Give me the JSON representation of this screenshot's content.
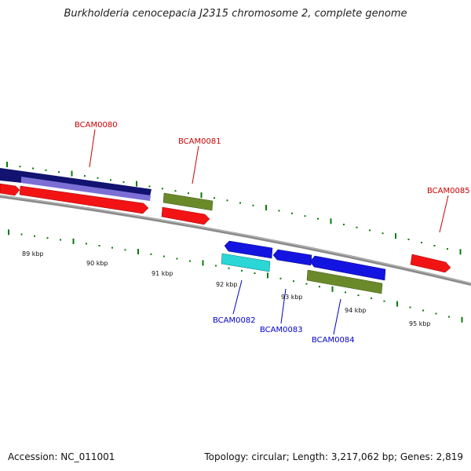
{
  "header": {
    "title": "Burkholderia cenocepacia J2315 chromosome 2, complete genome"
  },
  "footer": {
    "accession": "Accession: NC_011001",
    "summary": "Topology: circular; Length: 3,217,062 bp; Genes: 2,819"
  },
  "colors": {
    "forward_label": "#cc0000",
    "reverse_label": "#0000cc",
    "tick": "#007700",
    "backbone": "#7a7a7a"
  },
  "genes": [
    {
      "id": "BCAM0080",
      "label": "BCAM0080",
      "strand": "forward",
      "color_class": "red",
      "icon": "arrow-right-icon"
    },
    {
      "id": "BCAM0081",
      "label": "BCAM0081",
      "strand": "forward",
      "color_class": "red",
      "icon": "arrow-right-icon"
    },
    {
      "id": "BCAM0085",
      "label": "BCAM0085",
      "strand": "forward",
      "color_class": "red",
      "icon": "arrow-right-icon"
    },
    {
      "id": "BCAM0082",
      "label": "BCAM0082",
      "strand": "reverse",
      "color_class": "blue",
      "icon": "arrow-left-icon"
    },
    {
      "id": "BCAM0083",
      "label": "BCAM0083",
      "strand": "reverse",
      "color_class": "blue",
      "icon": "arrow-left-icon"
    },
    {
      "id": "BCAM0084",
      "label": "BCAM0084",
      "strand": "reverse",
      "color_class": "blue",
      "icon": "arrow-left-icon"
    }
  ],
  "kbp_labels": [
    "89 kbp",
    "90 kbp",
    "91 kbp",
    "92 kbp",
    "93 kbp",
    "94 kbp",
    "95 kbp"
  ]
}
